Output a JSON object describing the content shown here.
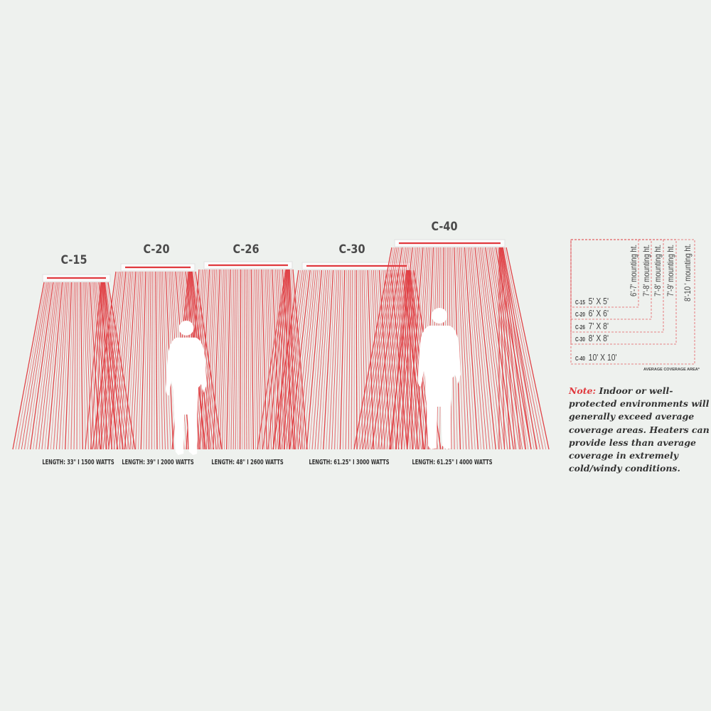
{
  "colors": {
    "beam": "#e0393e",
    "background": "#eef1ee",
    "text": "#333333",
    "note_lead": "#e0393e",
    "legend_dash": "#e0393e"
  },
  "heaters": [
    {
      "model": "C-15",
      "spec": "LENGTH: 33\" I 1500 WATTS"
    },
    {
      "model": "C-20",
      "spec": "LENGTH: 39\" I 2000 WATTS"
    },
    {
      "model": "C-26",
      "spec": "LENGTH: 48\" I 2600 WATTS"
    },
    {
      "model": "C-30",
      "spec": "LENGTH: 61.25\" I 3000 WATTS"
    },
    {
      "model": "C-40",
      "spec": "LENGTH: 61.25\" I 4000 WATTS"
    }
  ],
  "legend": {
    "rows": [
      {
        "model": "C-15",
        "area": "5' X 5'",
        "mounting": "6'-7' mounting ht."
      },
      {
        "model": "C-20",
        "area": "6' X 6'",
        "mounting": "7'-8' mounting ht."
      },
      {
        "model": "C-26",
        "area": "7' X 8'",
        "mounting": "7'-8' mounting ht."
      },
      {
        "model": "C-30",
        "area": "8' X 8'",
        "mounting": "7'-9' mounting ht."
      },
      {
        "model": "C-40",
        "area": "10' X 10'",
        "mounting": "8'-10 ' mounting ht."
      }
    ],
    "caption": "AVERAGE COVERAGE AREA*"
  },
  "note": {
    "lead": "Note:",
    "text": " Indoor or well-protected environments will generally exceed average coverage areas. Heaters can provide less than average coverage in extremely cold/windy conditions."
  },
  "icons": [
    "heater-bar-icon",
    "person-silhouette-icon"
  ]
}
